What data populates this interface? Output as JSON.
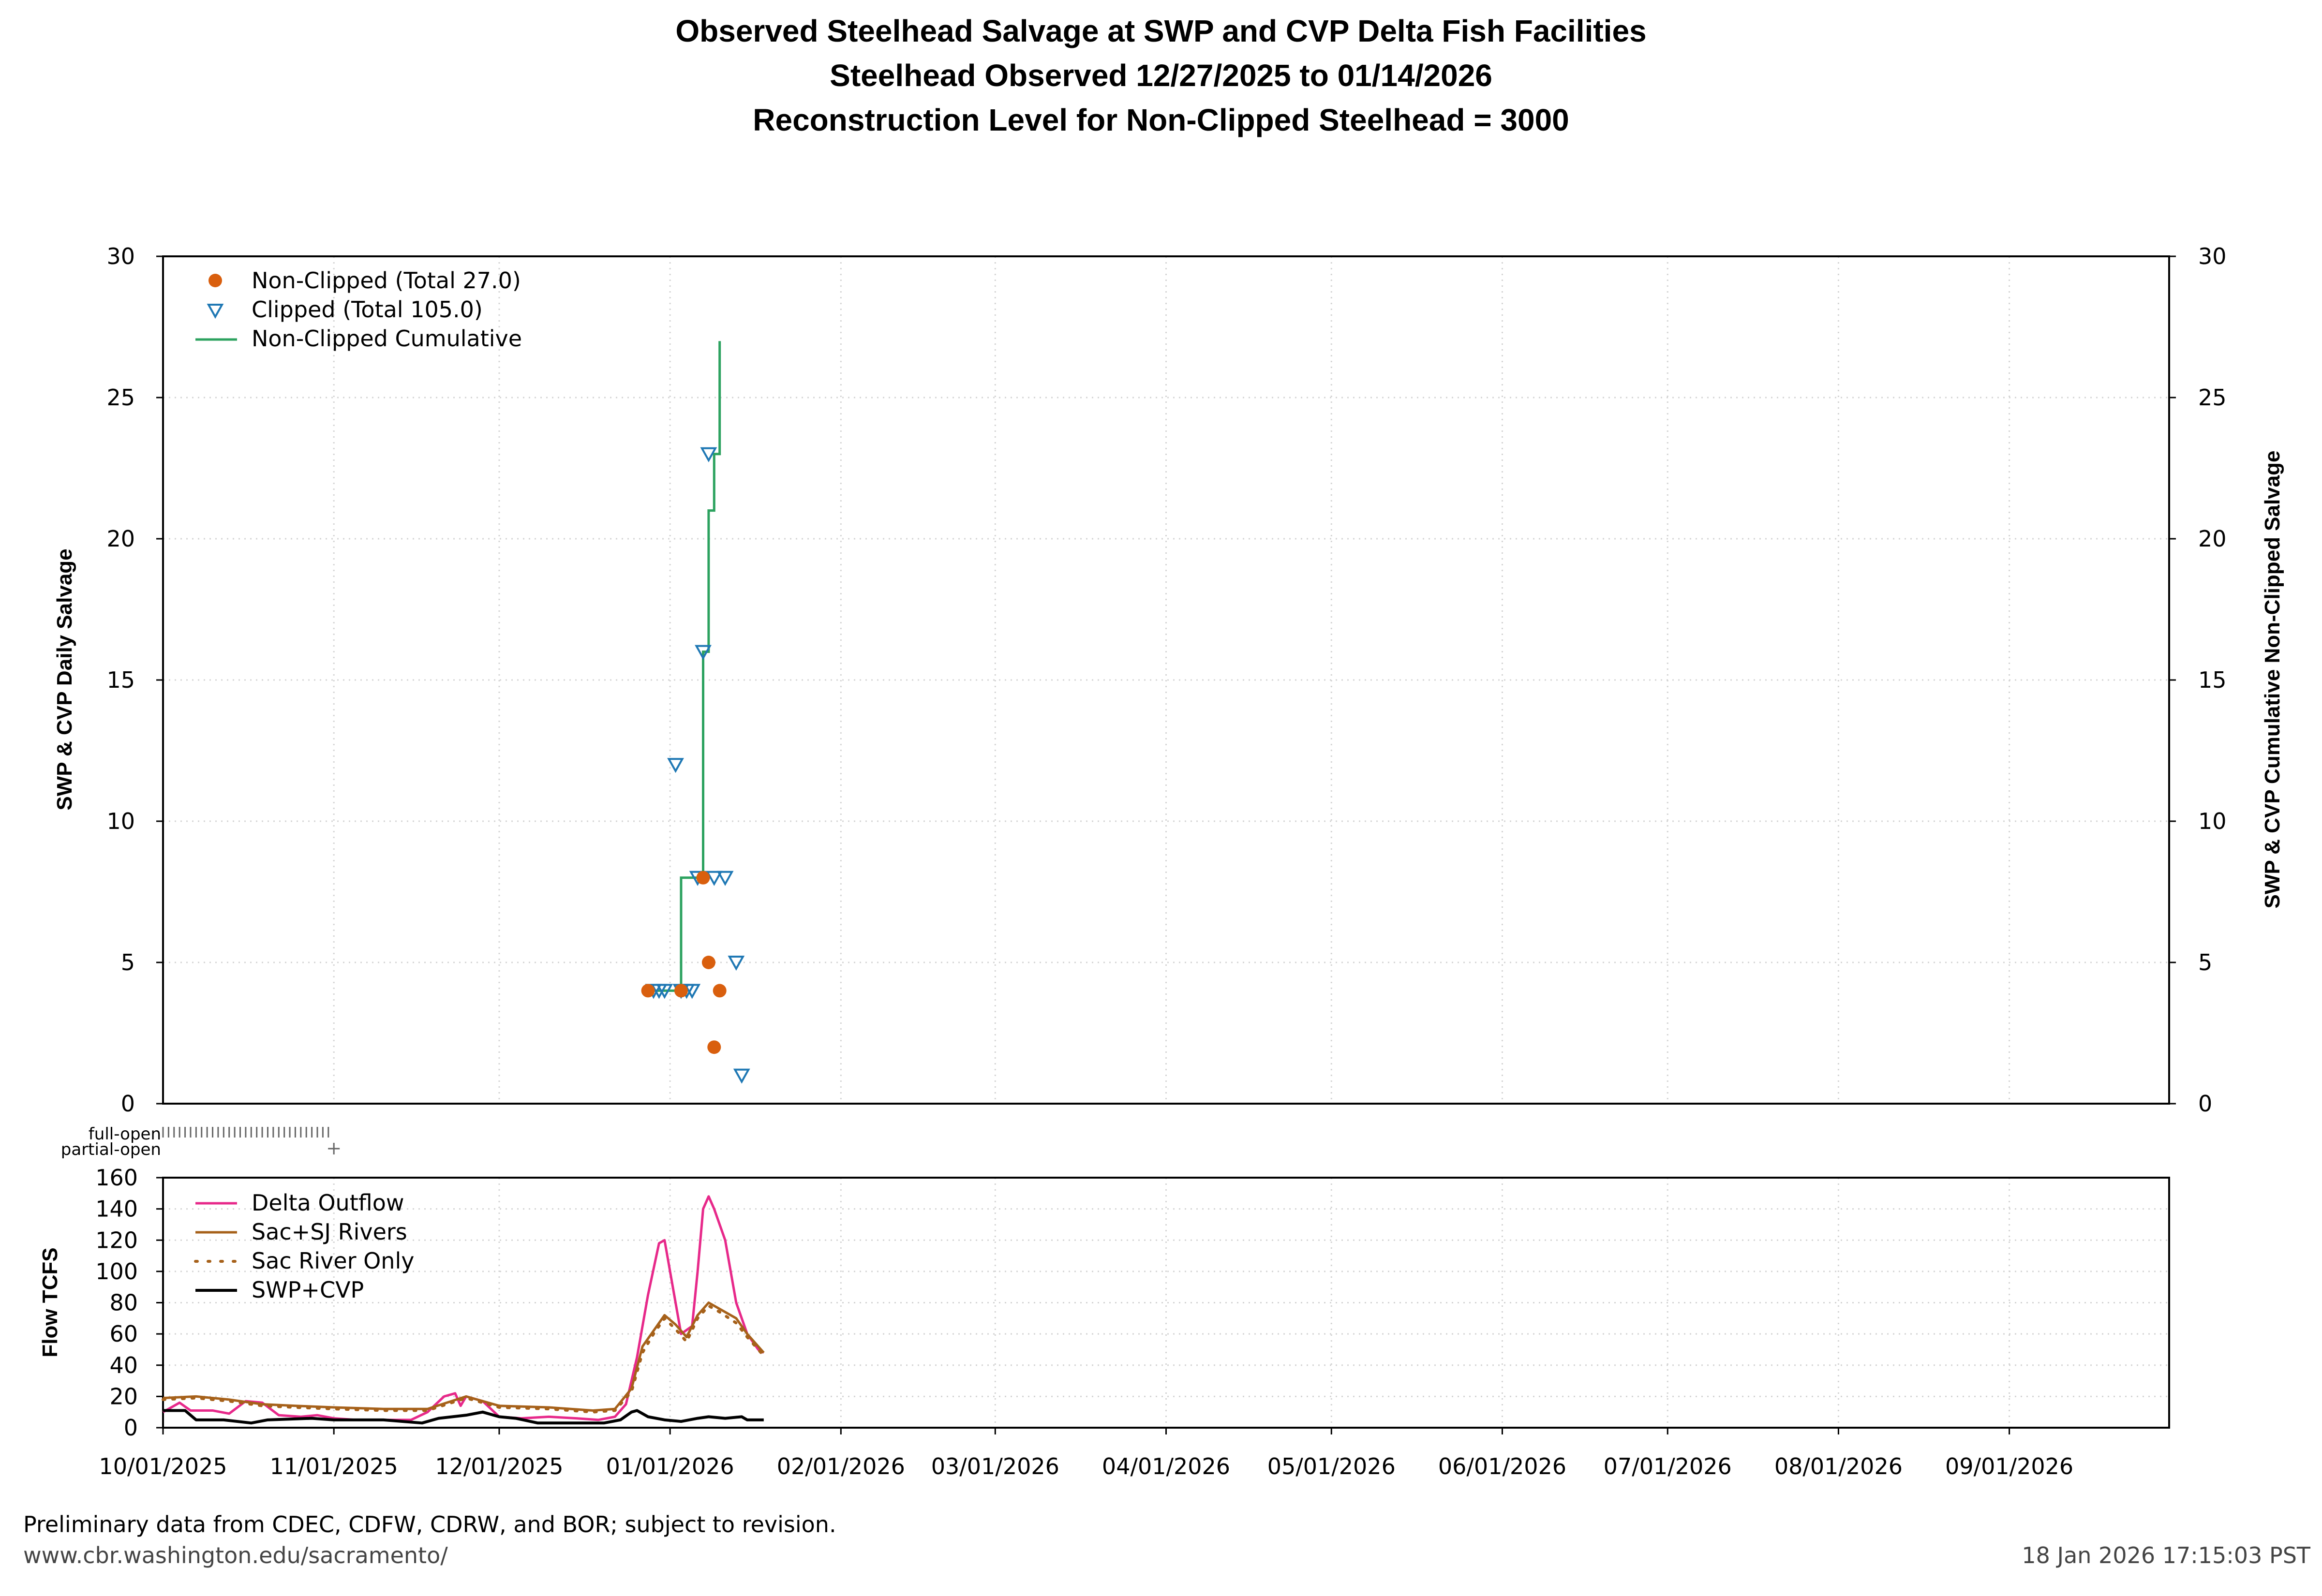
{
  "title": {
    "line1": "Observed Steelhead Salvage at SWP and CVP Delta Fish Facilities",
    "line2": "Steelhead Observed 12/27/2025 to 01/14/2026",
    "line3": "Reconstruction Level for Non-Clipped Steelhead = 3000"
  },
  "footer": {
    "note": "Preliminary data from CDEC, CDFW, CDRW, and BOR; subject to revision.",
    "url": "www.cbr.washington.edu/sacramento/",
    "timestamp": "18 Jan 2026 17:15:03 PST"
  },
  "colors": {
    "non_clipped": "#d95f0e",
    "clipped": "#1f78b4",
    "cumulative": "#2ca25f",
    "delta_outflow": "#e7298a",
    "sac_sj": "#a6611a",
    "sac_only": "#a6611a",
    "swp_cvp": "#000000"
  },
  "x_axis": {
    "ticks": [
      "10/01/2025",
      "11/01/2025",
      "12/01/2025",
      "01/01/2026",
      "02/01/2026",
      "03/01/2026",
      "04/01/2026",
      "05/01/2026",
      "06/01/2026",
      "07/01/2026",
      "08/01/2026",
      "09/01/2026"
    ],
    "range": [
      "10/01/2025",
      "09/30/2026"
    ]
  },
  "gate_labels": {
    "full": "full-open",
    "partial": "partial-open"
  },
  "chart_data": [
    {
      "type": "scatter",
      "ylabel": "SWP & CVP Daily Salvage",
      "y2label": "SWP & CVP Cumulative Non-Clipped Salvage",
      "ylim": [
        0,
        30
      ],
      "y_ticks": [
        "0",
        "5",
        "10",
        "15",
        "20",
        "25",
        "30"
      ],
      "grid": true,
      "legend_position": "top-left",
      "series": [
        {
          "name": "Non-Clipped (Total 27.0)",
          "marker": "circle",
          "points": [
            {
              "x": "12/28/2025",
              "y": 4
            },
            {
              "x": "01/03/2026",
              "y": 4
            },
            {
              "x": "01/07/2026",
              "y": 8
            },
            {
              "x": "01/08/2026",
              "y": 5
            },
            {
              "x": "01/09/2026",
              "y": 2
            },
            {
              "x": "01/10/2026",
              "y": 4
            }
          ]
        },
        {
          "name": "Clipped (Total 105.0)",
          "marker": "triangle-down",
          "points": [
            {
              "x": "12/29/2025",
              "y": 4
            },
            {
              "x": "12/30/2025",
              "y": 4
            },
            {
              "x": "12/31/2025",
              "y": 4
            },
            {
              "x": "01/02/2026",
              "y": 12
            },
            {
              "x": "01/03/2026",
              "y": 4
            },
            {
              "x": "01/04/2026",
              "y": 4
            },
            {
              "x": "01/05/2026",
              "y": 4
            },
            {
              "x": "01/06/2026",
              "y": 8
            },
            {
              "x": "01/07/2026",
              "y": 16
            },
            {
              "x": "01/08/2026",
              "y": 23
            },
            {
              "x": "01/09/2026",
              "y": 8
            },
            {
              "x": "01/11/2026",
              "y": 8
            },
            {
              "x": "01/13/2026",
              "y": 5
            },
            {
              "x": "01/14/2026",
              "y": 1
            }
          ]
        },
        {
          "name": "Non-Clipped Cumulative",
          "type": "step",
          "points": [
            {
              "x": "12/28/2025",
              "y": 4
            },
            {
              "x": "01/03/2026",
              "y": 8
            },
            {
              "x": "01/07/2026",
              "y": 16
            },
            {
              "x": "01/08/2026",
              "y": 21
            },
            {
              "x": "01/09/2026",
              "y": 23
            },
            {
              "x": "01/10/2026",
              "y": 27
            }
          ]
        }
      ]
    },
    {
      "type": "line",
      "ylabel": "Flow TCFS",
      "ylim": [
        0,
        160
      ],
      "y_ticks": [
        "0",
        "20",
        "40",
        "60",
        "80",
        "100",
        "120",
        "140",
        "160"
      ],
      "grid": true,
      "legend_position": "top-left",
      "series": [
        {
          "name": "Delta Outflow",
          "style": "solid",
          "points": [
            [
              "10/01/2025",
              10
            ],
            [
              "10/04/2025",
              16
            ],
            [
              "10/06/2025",
              11
            ],
            [
              "10/10/2025",
              11
            ],
            [
              "10/13/2025",
              9
            ],
            [
              "10/16/2025",
              17
            ],
            [
              "10/19/2025",
              16
            ],
            [
              "10/22/2025",
              8
            ],
            [
              "10/26/2025",
              7
            ],
            [
              "10/29/2025",
              8
            ],
            [
              "11/01/2025",
              6
            ],
            [
              "11/05/2025",
              5
            ],
            [
              "11/10/2025",
              5
            ],
            [
              "11/15/2025",
              5
            ],
            [
              "11/18/2025",
              10
            ],
            [
              "11/21/2025",
              20
            ],
            [
              "11/23/2025",
              22
            ],
            [
              "11/24/2025",
              14
            ],
            [
              "11/25/2025",
              20
            ],
            [
              "11/28/2025",
              17
            ],
            [
              "12/01/2025",
              7
            ],
            [
              "12/05/2025",
              6
            ],
            [
              "12/10/2025",
              7
            ],
            [
              "12/15/2025",
              6
            ],
            [
              "12/19/2025",
              5
            ],
            [
              "12/22/2025",
              7
            ],
            [
              "12/24/2025",
              15
            ],
            [
              "12/26/2025",
              45
            ],
            [
              "12/28/2025",
              85
            ],
            [
              "12/30/2025",
              118
            ],
            [
              "12/31/2025",
              120
            ],
            [
              "01/02/2026",
              80
            ],
            [
              "01/03/2026",
              60
            ],
            [
              "01/05/2026",
              65
            ],
            [
              "01/06/2026",
              100
            ],
            [
              "01/07/2026",
              140
            ],
            [
              "01/08/2026",
              148
            ],
            [
              "01/09/2026",
              140
            ],
            [
              "01/11/2026",
              120
            ],
            [
              "01/13/2026",
              80
            ],
            [
              "01/15/2026",
              60
            ],
            [
              "01/17/2026",
              50
            ],
            [
              "01/18/2026",
              48
            ]
          ]
        },
        {
          "name": "Sac+SJ Rivers",
          "style": "solid",
          "points": [
            [
              "10/01/2025",
              19
            ],
            [
              "10/07/2025",
              20
            ],
            [
              "10/13/2025",
              18
            ],
            [
              "10/19/2025",
              15
            ],
            [
              "10/25/2025",
              14
            ],
            [
              "11/01/2025",
              13
            ],
            [
              "11/10/2025",
              12
            ],
            [
              "11/18/2025",
              12
            ],
            [
              "11/25/2025",
              20
            ],
            [
              "12/01/2025",
              14
            ],
            [
              "12/10/2025",
              13
            ],
            [
              "12/18/2025",
              11
            ],
            [
              "12/22/2025",
              12
            ],
            [
              "12/25/2025",
              25
            ],
            [
              "12/27/2025",
              52
            ],
            [
              "12/29/2025",
              62
            ],
            [
              "12/31/2025",
              72
            ],
            [
              "01/02/2026",
              66
            ],
            [
              "01/04/2026",
              58
            ],
            [
              "01/06/2026",
              72
            ],
            [
              "01/08/2026",
              80
            ],
            [
              "01/10/2026",
              76
            ],
            [
              "01/13/2026",
              70
            ],
            [
              "01/15/2026",
              60
            ],
            [
              "01/18/2026",
              48
            ]
          ]
        },
        {
          "name": "Sac River Only",
          "style": "dotted",
          "points": [
            [
              "10/01/2025",
              18
            ],
            [
              "10/07/2025",
              19
            ],
            [
              "10/13/2025",
              17
            ],
            [
              "10/19/2025",
              14
            ],
            [
              "10/25/2025",
              13
            ],
            [
              "11/01/2025",
              12
            ],
            [
              "11/10/2025",
              11
            ],
            [
              "11/18/2025",
              11
            ],
            [
              "11/25/2025",
              19
            ],
            [
              "12/01/2025",
              13
            ],
            [
              "12/10/2025",
              12
            ],
            [
              "12/18/2025",
              10
            ],
            [
              "12/22/2025",
              11
            ],
            [
              "12/25/2025",
              23
            ],
            [
              "12/27/2025",
              48
            ],
            [
              "12/29/2025",
              60
            ],
            [
              "12/31/2025",
              70
            ],
            [
              "01/02/2026",
              63
            ],
            [
              "01/04/2026",
              55
            ],
            [
              "01/06/2026",
              70
            ],
            [
              "01/08/2026",
              78
            ],
            [
              "01/10/2026",
              74
            ],
            [
              "01/13/2026",
              67
            ],
            [
              "01/15/2026",
              58
            ],
            [
              "01/18/2026",
              46
            ]
          ]
        },
        {
          "name": "SWP+CVP",
          "style": "solid",
          "points": [
            [
              "10/01/2025",
              11
            ],
            [
              "10/05/2025",
              11
            ],
            [
              "10/07/2025",
              5
            ],
            [
              "10/12/2025",
              5
            ],
            [
              "10/17/2025",
              3
            ],
            [
              "10/20/2025",
              5
            ],
            [
              "10/28/2025",
              6
            ],
            [
              "11/01/2025",
              5
            ],
            [
              "11/10/2025",
              5
            ],
            [
              "11/17/2025",
              3
            ],
            [
              "11/20/2025",
              6
            ],
            [
              "11/25/2025",
              8
            ],
            [
              "11/28/2025",
              10
            ],
            [
              "12/01/2025",
              7
            ],
            [
              "12/04/2025",
              6
            ],
            [
              "12/08/2025",
              3
            ],
            [
              "12/15/2025",
              3
            ],
            [
              "12/20/2025",
              3
            ],
            [
              "12/23/2025",
              5
            ],
            [
              "12/25/2025",
              10
            ],
            [
              "12/26/2025",
              11
            ],
            [
              "12/28/2025",
              7
            ],
            [
              "12/31/2025",
              5
            ],
            [
              "01/03/2026",
              4
            ],
            [
              "01/06/2026",
              6
            ],
            [
              "01/08/2026",
              7
            ],
            [
              "01/11/2026",
              6
            ],
            [
              "01/14/2026",
              7
            ],
            [
              "01/15/2026",
              5
            ],
            [
              "01/18/2026",
              5
            ]
          ]
        }
      ]
    }
  ]
}
